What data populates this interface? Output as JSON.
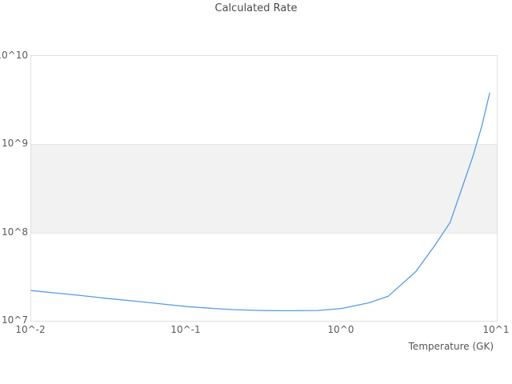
{
  "title": "Calculated Rate",
  "axes": {
    "x_title": "Temperature (GK)",
    "x_tick_labels": [
      "10^-2",
      "10^-1",
      "10^0",
      "10^1"
    ],
    "y_tick_labels": [
      "10^7",
      "10^8",
      "10^9",
      "10^10"
    ]
  },
  "colors": {
    "line": "#569ce3",
    "band": "#f2f2f2",
    "grid": "#e7e7e7",
    "border": "#e0e0e0",
    "tick_text": "#5a5a5a",
    "title_text": "#4a4a4a"
  },
  "chart_data": {
    "type": "line",
    "title": "Calculated Rate",
    "xlabel": "Temperature (GK)",
    "ylabel": "",
    "xscale": "log",
    "yscale": "log",
    "xlim": [
      0.01,
      10
    ],
    "ylim": [
      10000000.0,
      10000000000.0
    ],
    "xticks": [
      0.01,
      0.1,
      1,
      10
    ],
    "yticks": [
      10000000.0,
      100000000.0,
      1000000000.0,
      10000000000.0
    ],
    "legend": "none",
    "grid": "horizontal-only",
    "shaded_band": {
      "from": 100000000.0,
      "to": 1000000000.0
    },
    "x": [
      0.01,
      0.015,
      0.02,
      0.03,
      0.05,
      0.07,
      0.1,
      0.15,
      0.2,
      0.3,
      0.4,
      0.5,
      0.7,
      1.0,
      1.5,
      2.0,
      3.0,
      4.0,
      5.0,
      6.0,
      7.0,
      8.0,
      9.0
    ],
    "y": [
      22000000.0,
      20500000.0,
      19500000.0,
      18000000.0,
      16500000.0,
      15500000.0,
      14500000.0,
      13800000.0,
      13400000.0,
      13100000.0,
      13000000.0,
      13000000.0,
      13100000.0,
      13800000.0,
      16000000.0,
      19000000.0,
      36000000.0,
      72000000.0,
      130000000.0,
      330000000.0,
      720000000.0,
      1600000000.0,
      3800000000.0
    ]
  }
}
